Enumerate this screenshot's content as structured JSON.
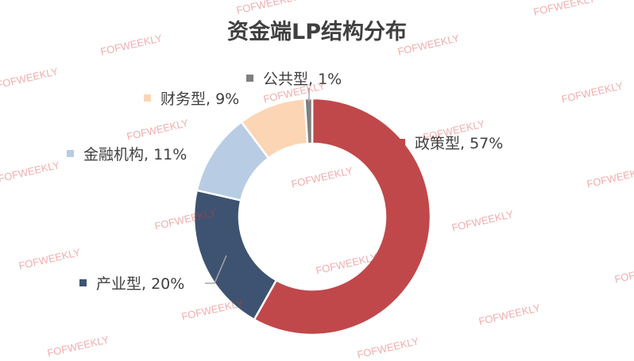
{
  "watermark": "FOFWEEKLY",
  "chart_data": {
    "type": "pie",
    "donut": true,
    "title": "资金端LP结构分布",
    "slices": [
      {
        "label": "政策型",
        "value": 57,
        "color": "#C0484A"
      },
      {
        "label": "产业型",
        "value": 20,
        "color": "#3E5371"
      },
      {
        "label": "金融机构",
        "value": 11,
        "color": "#B8CCE4"
      },
      {
        "label": "财务型",
        "value": 9,
        "color": "#FCD5B5"
      },
      {
        "label": "公共型",
        "value": 1,
        "color": "#7F7F7F"
      }
    ],
    "label_format": "{label}, {value}%"
  }
}
